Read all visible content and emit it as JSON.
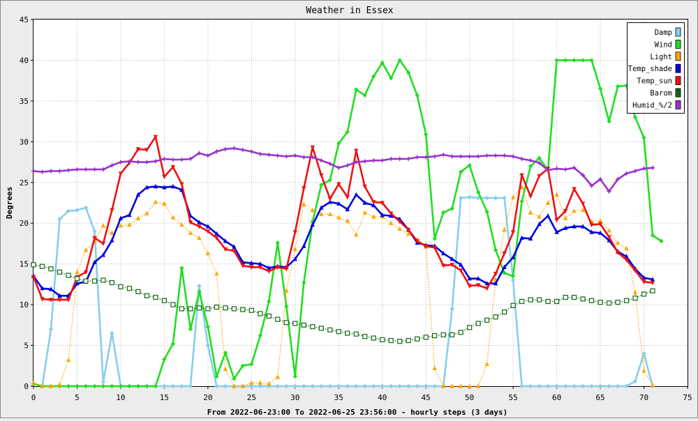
{
  "chart_data": {
    "type": "line",
    "title": "Weather in Essex",
    "xlabel": "From 2022-06-23:00 To 2022-06-25 23:56:00 - hourly steps (3 days)",
    "ylabel": "Degrees",
    "xlim": [
      0,
      75
    ],
    "ylim": [
      0,
      45
    ],
    "x_ticks": [
      0,
      5,
      10,
      15,
      20,
      25,
      30,
      35,
      40,
      45,
      50,
      55,
      60,
      65,
      70,
      75
    ],
    "y_ticks": [
      0,
      5,
      10,
      15,
      20,
      25,
      30,
      35,
      40,
      45
    ],
    "grid": true,
    "legend_position": "top-right",
    "series": [
      {
        "name": "Damp",
        "color": "#87ceeb",
        "style": "solid",
        "marker": "diamond",
        "values": [
          0.3,
          0,
          7,
          20.5,
          21.5,
          21.6,
          21.9,
          19,
          0.5,
          6.5,
          0,
          0,
          0,
          0,
          0,
          0,
          0,
          0,
          0,
          12.3,
          5,
          0,
          0,
          0,
          0,
          0,
          0,
          0,
          0,
          0,
          0,
          0,
          0,
          0,
          0,
          0,
          0,
          0,
          0,
          0,
          0,
          0,
          0,
          0,
          0,
          0,
          0,
          0,
          9.5,
          23.1,
          23.2,
          23.1,
          23.1,
          23.1,
          23.1,
          13,
          0,
          0,
          0,
          0,
          0,
          0,
          0,
          0,
          0,
          0,
          0,
          0,
          0,
          0.6,
          4,
          0
        ]
      },
      {
        "name": "Wind",
        "color": "#22dd22",
        "style": "solid",
        "marker": "diamond",
        "values": [
          0.3,
          0,
          0,
          0,
          0,
          0,
          0,
          0,
          0,
          0,
          0,
          0,
          0,
          0,
          0,
          3.3,
          5.2,
          14.5,
          7,
          11.6,
          7.3,
          1.2,
          4.1,
          0.9,
          2.5,
          2.7,
          6.2,
          10.4,
          17.6,
          9.8,
          1.2,
          12.7,
          20.2,
          24.7,
          25.3,
          29.8,
          31.2,
          36.4,
          35.7,
          38,
          39.7,
          37.8,
          40,
          38.5,
          35.7,
          30.9,
          18.1,
          21.3,
          21.8,
          26.3,
          27.1,
          23.8,
          21.4,
          16.7,
          13.9,
          13.5,
          22.7,
          27,
          28,
          26.5,
          40,
          40,
          40,
          40,
          40,
          36.5,
          32.5,
          36.8,
          36.9,
          33,
          30.5,
          18.5,
          17.8
        ]
      },
      {
        "name": "Light",
        "color": "#ffa500",
        "style": "dotted",
        "marker": "triangle-up",
        "values": [
          0.4,
          0,
          0,
          0.2,
          3.2,
          14,
          16.7,
          17.8,
          19.7,
          18.8,
          19.7,
          19.8,
          20.6,
          21.2,
          22.6,
          22.4,
          20.7,
          19.8,
          18.8,
          18.2,
          16.3,
          13.8,
          2.1,
          0,
          0,
          0.4,
          0.4,
          0.3,
          1.1,
          11.7,
          16.8,
          22.3,
          21.6,
          21.1,
          21.1,
          20.7,
          20.3,
          18.6,
          21.3,
          20.8,
          20.8,
          20,
          19.3,
          18.7,
          18,
          17.1,
          2.2,
          0,
          0,
          0,
          0,
          0,
          2.7,
          13.1,
          19.2,
          23.2,
          24.4,
          21.3,
          20.8,
          22.5,
          23.5,
          20.6,
          21.5,
          21.6,
          20.2,
          20.3,
          19.1,
          17.6,
          16.9,
          11.5,
          1.9,
          0.1
        ]
      },
      {
        "name": "Temp_shade",
        "color": "#0000dd",
        "style": "solid",
        "marker": "triangle-up",
        "values": [
          13.5,
          12,
          11.9,
          11.1,
          11.1,
          12.6,
          12.8,
          15.2,
          16.1,
          17.9,
          20.6,
          21,
          23.5,
          24.4,
          24.5,
          24.4,
          24.5,
          24.1,
          20.9,
          20.1,
          19.6,
          18.7,
          17.8,
          17.1,
          15.2,
          15.1,
          15,
          14.5,
          14.7,
          14.6,
          15.6,
          17.2,
          19.8,
          21.9,
          22.6,
          22.4,
          21.7,
          23.5,
          22.5,
          22.2,
          21,
          20.9,
          20.5,
          19.2,
          17.6,
          17.3,
          17.2,
          16.3,
          15.6,
          14.9,
          13.2,
          13.2,
          12.6,
          12.6,
          14.6,
          15.8,
          18.2,
          18.1,
          19.9,
          20.9,
          18.9,
          19.4,
          19.6,
          19.6,
          18.9,
          18.8,
          17.9,
          16.5,
          15.9,
          14.4,
          13.3,
          13.1
        ]
      },
      {
        "name": "Temp_sun",
        "color": "#ee1111",
        "style": "solid",
        "marker": "triangle-down",
        "values": [
          13.4,
          10.7,
          10.6,
          10.6,
          10.6,
          13.4,
          14,
          18.2,
          17.5,
          21.6,
          26.1,
          27.4,
          29.1,
          29,
          30.6,
          25.7,
          26.9,
          24.8,
          20.1,
          19.6,
          19,
          18.2,
          16.8,
          16.6,
          14.8,
          14.6,
          14.6,
          14.1,
          14.6,
          14.4,
          18.9,
          24.3,
          29.3,
          25.9,
          23,
          24.8,
          23.2,
          28.9,
          24.5,
          22.6,
          22.5,
          21.2,
          20.2,
          19.2,
          17.8,
          17.2,
          17,
          14.8,
          14.9,
          14.2,
          12.3,
          12.4,
          12,
          13.8,
          16.3,
          18.9,
          25.9,
          23.3,
          25.8,
          26.7,
          20.4,
          21.5,
          24.2,
          22.4,
          19.8,
          19.9,
          18.3,
          16.4,
          15.5,
          14.2,
          12.8,
          12.7
        ]
      },
      {
        "name": "Barom",
        "color": "#116611",
        "style": "dotted",
        "marker": "square",
        "values": [
          14.9,
          14.7,
          14.4,
          14,
          13.6,
          13.2,
          12.9,
          12.9,
          13,
          12.7,
          12.2,
          12,
          11.6,
          11.1,
          10.9,
          10.5,
          10,
          9.5,
          9.5,
          9.6,
          9.5,
          9.7,
          9.6,
          9.5,
          9.4,
          9.3,
          8.9,
          8.6,
          8.2,
          7.8,
          7.7,
          7.5,
          7.3,
          7.1,
          6.9,
          6.7,
          6.5,
          6.4,
          6.1,
          5.9,
          5.7,
          5.6,
          5.5,
          5.6,
          5.8,
          6,
          6.2,
          6.3,
          6.3,
          6.6,
          7.2,
          7.7,
          8.1,
          8.5,
          9.1,
          9.9,
          10.4,
          10.6,
          10.6,
          10.4,
          10.4,
          10.9,
          10.9,
          10.7,
          10.5,
          10.3,
          10.2,
          10.3,
          10.5,
          10.8,
          11.3,
          11.7
        ]
      },
      {
        "name": "Humid_%/2",
        "color": "#9932cc",
        "style": "solid",
        "marker": "star",
        "values": [
          26.4,
          26.3,
          26.4,
          26.4,
          26.5,
          26.6,
          26.6,
          26.6,
          26.6,
          27.1,
          27.5,
          27.6,
          27.5,
          27.5,
          27.6,
          27.9,
          27.8,
          27.8,
          27.9,
          28.6,
          28.3,
          28.8,
          29.1,
          29.2,
          29,
          28.8,
          28.5,
          28.4,
          28.3,
          28.2,
          28.3,
          28.1,
          28.1,
          27.7,
          27.3,
          26.8,
          27.1,
          27.5,
          27.6,
          27.7,
          27.7,
          27.9,
          27.9,
          27.9,
          28.1,
          28.1,
          28.2,
          28.4,
          28.2,
          28.2,
          28.2,
          28.2,
          28.3,
          28.3,
          28.3,
          28.2,
          27.9,
          27.7,
          27.4,
          26.5,
          26.7,
          26.6,
          26.8,
          25.9,
          24.6,
          25.4,
          23.9,
          25.4,
          26.1,
          26.4,
          26.7,
          26.8
        ]
      }
    ]
  }
}
